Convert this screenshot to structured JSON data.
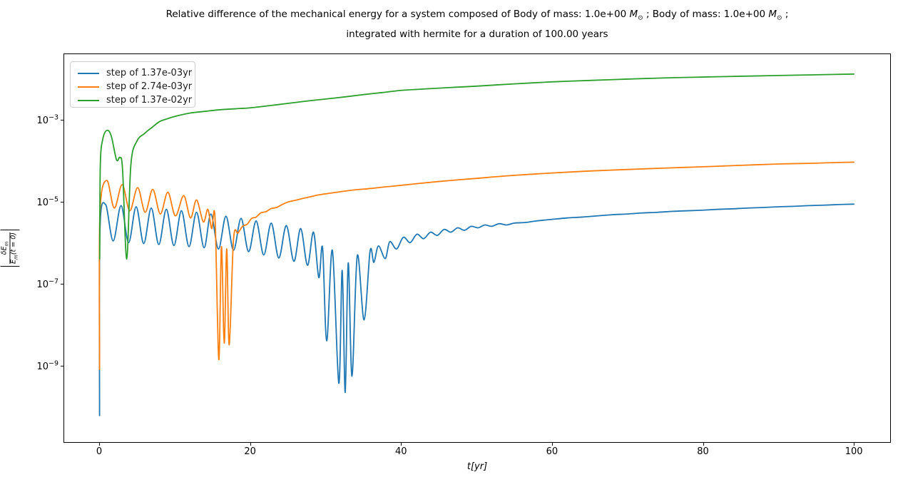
{
  "figure": {
    "title_line1_prefix": "Relative difference of the mechanical energy for a system composed of Body of mass: 1.0e+00 ",
    "mass_symbol": "M",
    "sun_subscript": "⊙",
    "title_line1_mid": " ; Body of mass: 1.0e+00 ",
    "title_line1_suffix": " ;",
    "title_line2": "integrated with hermite for a duration of 100.00 years"
  },
  "ylabel_parts": {
    "bar": "|",
    "num_main": "δE",
    "num_sub": "m",
    "den_main": "E",
    "den_sub": "m",
    "den_suffix": "(t = 0)"
  },
  "chart_data": {
    "type": "line",
    "title": "Relative difference of the mechanical energy for a system composed of Body of mass: 1.0e+00 M⊙ ; Body of mass: 1.0e+00 M⊙ ; integrated with hermite for a duration of 100.00 years",
    "xlabel": "t[yr]",
    "ylabel": "|δEm / Em(t = 0)|",
    "x_scale": "linear",
    "y_scale": "log",
    "xlim": [
      -4.73,
      104.9
    ],
    "ylim": [
      1.3e-11,
      0.0414
    ],
    "x_ticks": [
      0,
      20,
      40,
      60,
      80,
      100
    ],
    "y_tick_exponents": [
      -3,
      -5,
      -7,
      -9
    ],
    "grid": false,
    "legend_position": "upper left",
    "series": [
      {
        "name": "step of 1.37e-03yr",
        "color": "#1f77b4",
        "points": [
          [
            0.05,
            6e-11
          ],
          [
            0.1,
            2e-06
          ],
          [
            0.85,
            8.5e-06
          ],
          [
            1.85,
            1.1e-06
          ],
          [
            2.9,
            8e-06
          ],
          [
            3.9,
            1e-06
          ],
          [
            4.9,
            7.5e-06
          ],
          [
            5.9,
            9.5e-07
          ],
          [
            6.9,
            7e-06
          ],
          [
            7.9,
            9e-07
          ],
          [
            8.9,
            6.5e-06
          ],
          [
            9.9,
            8.5e-07
          ],
          [
            10.9,
            6e-06
          ],
          [
            11.9,
            8e-07
          ],
          [
            12.9,
            5.5e-06
          ],
          [
            13.9,
            7.5e-07
          ],
          [
            14.8,
            5e-06
          ],
          [
            15.8,
            7e-07
          ],
          [
            16.8,
            4.4e-06
          ],
          [
            17.8,
            6.5e-07
          ],
          [
            18.8,
            3.9e-06
          ],
          [
            19.8,
            6e-07
          ],
          [
            20.8,
            3.4e-06
          ],
          [
            21.8,
            5e-07
          ],
          [
            22.8,
            3e-06
          ],
          [
            23.8,
            4.2e-07
          ],
          [
            24.8,
            2.6e-06
          ],
          [
            25.8,
            3.5e-07
          ],
          [
            26.7,
            2.2e-06
          ],
          [
            27.6,
            2.8e-07
          ],
          [
            28.4,
            1.8e-06
          ],
          [
            29.1,
            1.4e-07
          ],
          [
            29.6,
            7.5e-07
          ],
          [
            30.15,
            4e-09
          ],
          [
            30.9,
            6.5e-07
          ],
          [
            31.75,
            3.7e-10
          ],
          [
            32.2,
            2.1e-07
          ],
          [
            32.6,
            2.2e-10
          ],
          [
            33.0,
            3.2e-07
          ],
          [
            33.5,
            5.5e-10
          ],
          [
            34.2,
            4.8e-07
          ],
          [
            35.1,
            1.3e-08
          ],
          [
            35.9,
            6.3e-07
          ],
          [
            36.4,
            3.3e-07
          ],
          [
            37.0,
            8.3e-07
          ],
          [
            37.9,
            4.1e-07
          ],
          [
            38.5,
            1.05e-06
          ],
          [
            39.4,
            7e-07
          ],
          [
            40.3,
            1.35e-06
          ],
          [
            41.2,
            1e-06
          ],
          [
            42.1,
            1.6e-06
          ],
          [
            43.0,
            1.25e-06
          ],
          [
            43.9,
            1.8e-06
          ],
          [
            44.8,
            1.5e-06
          ],
          [
            45.7,
            2.1e-06
          ],
          [
            46.6,
            1.8e-06
          ],
          [
            47.5,
            2.3e-06
          ],
          [
            48.4,
            2e-06
          ],
          [
            49.3,
            2.5e-06
          ],
          [
            50.2,
            2.3e-06
          ],
          [
            51.1,
            2.7e-06
          ],
          [
            52.0,
            2.5e-06
          ],
          [
            53.0,
            2.9e-06
          ],
          [
            54.0,
            2.7e-06
          ],
          [
            55.0,
            3e-06
          ],
          [
            56.5,
            3.1e-06
          ],
          [
            58,
            3.4e-06
          ],
          [
            60,
            3.7e-06
          ],
          [
            62,
            4e-06
          ],
          [
            64,
            4.2e-06
          ],
          [
            66,
            4.5e-06
          ],
          [
            68,
            4.8e-06
          ],
          [
            70,
            5e-06
          ],
          [
            72,
            5.3e-06
          ],
          [
            74,
            5.5e-06
          ],
          [
            76,
            5.8e-06
          ],
          [
            78,
            6e-06
          ],
          [
            80,
            6.2e-06
          ],
          [
            82,
            6.5e-06
          ],
          [
            84,
            6.7e-06
          ],
          [
            86,
            7e-06
          ],
          [
            88,
            7.2e-06
          ],
          [
            90,
            7.5e-06
          ],
          [
            92,
            7.7e-06
          ],
          [
            94,
            8e-06
          ],
          [
            96,
            8.2e-06
          ],
          [
            98,
            8.5e-06
          ],
          [
            100,
            8.7e-06
          ]
        ]
      },
      {
        "name": "step of 2.74e-03yr",
        "color": "#ff7f0e",
        "points": [
          [
            0.05,
            8e-10
          ],
          [
            0.1,
            5e-06
          ],
          [
            1.0,
            3.3e-05
          ],
          [
            2.0,
            7e-06
          ],
          [
            3.05,
            2.6e-05
          ],
          [
            4.05,
            6e-06
          ],
          [
            5.1,
            2.2e-05
          ],
          [
            6.1,
            5.5e-06
          ],
          [
            7.1,
            2e-05
          ],
          [
            8.1,
            5e-06
          ],
          [
            9.1,
            1.7e-05
          ],
          [
            10.1,
            4.5e-06
          ],
          [
            11.2,
            1.4e-05
          ],
          [
            12.1,
            4e-06
          ],
          [
            12.9,
            1.1e-05
          ],
          [
            13.8,
            3.2e-06
          ],
          [
            14.4,
            6.5e-06
          ],
          [
            14.9,
            2.2e-06
          ],
          [
            15.35,
            4e-06
          ],
          [
            15.85,
            1.4e-09
          ],
          [
            16.2,
            8e-07
          ],
          [
            16.57,
            3.5e-09
          ],
          [
            16.9,
            7e-07
          ],
          [
            17.23,
            3.2e-09
          ],
          [
            17.8,
            1.2e-06
          ],
          [
            18.4,
            1.7e-06
          ],
          [
            19.0,
            2.5e-06
          ],
          [
            19.6,
            2.8e-06
          ],
          [
            20.2,
            3.9e-06
          ],
          [
            20.8,
            4.2e-06
          ],
          [
            21.4,
            5.3e-06
          ],
          [
            22.1,
            5.7e-06
          ],
          [
            22.8,
            6.8e-06
          ],
          [
            23.5,
            7.2e-06
          ],
          [
            24.2,
            8.4e-06
          ],
          [
            25,
            9.8e-06
          ],
          [
            26,
            1.08e-05
          ],
          [
            27,
            1.2e-05
          ],
          [
            28,
            1.32e-05
          ],
          [
            29,
            1.45e-05
          ],
          [
            30,
            1.55e-05
          ],
          [
            32,
            1.75e-05
          ],
          [
            34,
            1.95e-05
          ],
          [
            36,
            2.1e-05
          ],
          [
            38,
            2.3e-05
          ],
          [
            40,
            2.5e-05
          ],
          [
            42.5,
            2.8e-05
          ],
          [
            45,
            3.1e-05
          ],
          [
            47.5,
            3.4e-05
          ],
          [
            50,
            3.7e-05
          ],
          [
            52.5,
            4.05e-05
          ],
          [
            55,
            4.4e-05
          ],
          [
            57.5,
            4.7e-05
          ],
          [
            60,
            5e-05
          ],
          [
            62.5,
            5.3e-05
          ],
          [
            65,
            5.6e-05
          ],
          [
            67.5,
            5.85e-05
          ],
          [
            70,
            6.1e-05
          ],
          [
            72.5,
            6.35e-05
          ],
          [
            75,
            6.6e-05
          ],
          [
            77.5,
            6.85e-05
          ],
          [
            80,
            7.1e-05
          ],
          [
            82.5,
            7.4e-05
          ],
          [
            85,
            7.7e-05
          ],
          [
            87.5,
            8e-05
          ],
          [
            90,
            8.3e-05
          ],
          [
            92.5,
            8.5e-05
          ],
          [
            95,
            8.7e-05
          ],
          [
            97.5,
            9e-05
          ],
          [
            100,
            9.2e-05
          ]
        ]
      },
      {
        "name": "step of 1.37e-02yr",
        "color": "#2ca02c",
        "points": [
          [
            0.07,
            4e-07
          ],
          [
            0.15,
            8e-05
          ],
          [
            0.5,
            0.00035
          ],
          [
            1.05,
            0.00055
          ],
          [
            1.6,
            0.0004
          ],
          [
            2.3,
            0.000105
          ],
          [
            2.75,
            0.00012
          ],
          [
            3.1,
            6e-05
          ],
          [
            3.65,
            4e-07
          ],
          [
            4.2,
            8e-05
          ],
          [
            5,
            0.0003
          ],
          [
            6,
            0.00046
          ],
          [
            7,
            0.00065
          ],
          [
            8,
            0.0009
          ],
          [
            9,
            0.00105
          ],
          [
            10,
            0.0012
          ],
          [
            12,
            0.00145
          ],
          [
            14,
            0.0016
          ],
          [
            16,
            0.00175
          ],
          [
            18,
            0.00185
          ],
          [
            20,
            0.00195
          ],
          [
            22.5,
            0.0022
          ],
          [
            25,
            0.0025
          ],
          [
            27.5,
            0.00285
          ],
          [
            30,
            0.0032
          ],
          [
            32.5,
            0.0036
          ],
          [
            35,
            0.0041
          ],
          [
            37.5,
            0.0046
          ],
          [
            40,
            0.0052
          ],
          [
            42.5,
            0.00555
          ],
          [
            45,
            0.0059
          ],
          [
            47.5,
            0.00625
          ],
          [
            50,
            0.0066
          ],
          [
            52.5,
            0.00705
          ],
          [
            55,
            0.0075
          ],
          [
            57.5,
            0.00795
          ],
          [
            60,
            0.0084
          ],
          [
            62.5,
            0.00875
          ],
          [
            65,
            0.0091
          ],
          [
            67.5,
            0.00945
          ],
          [
            70,
            0.0098
          ],
          [
            72.5,
            0.01015
          ],
          [
            75,
            0.0105
          ],
          [
            77.5,
            0.01075
          ],
          [
            80,
            0.011
          ],
          [
            82.5,
            0.01125
          ],
          [
            85,
            0.0115
          ],
          [
            87.5,
            0.01175
          ],
          [
            90,
            0.012
          ],
          [
            92.5,
            0.01225
          ],
          [
            95,
            0.0125
          ],
          [
            97.5,
            0.01275
          ],
          [
            100,
            0.013
          ]
        ]
      }
    ]
  }
}
